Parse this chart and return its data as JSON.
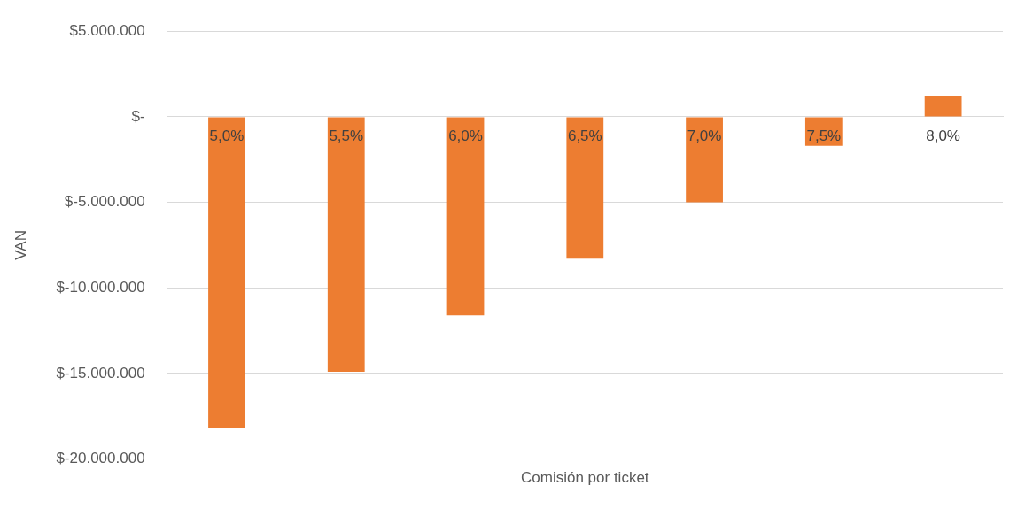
{
  "chart_data": {
    "type": "bar",
    "xlabel": "Comisión por ticket",
    "ylabel": "VAN",
    "categories": [
      "5,0%",
      "5,5%",
      "6,0%",
      "6,5%",
      "7,0%",
      "7,5%",
      "8,0%"
    ],
    "values": [
      -18200000,
      -14900000,
      -11600000,
      -8300000,
      -5000000,
      -1700000,
      1200000
    ],
    "color": "#ed7d31",
    "ylim": [
      -20000000,
      5000000
    ],
    "yticks": [
      {
        "value": -20000000,
        "label": "$-20.000.000"
      },
      {
        "value": -15000000,
        "label": "$-15.000.000"
      },
      {
        "value": -10000000,
        "label": "$-10.000.000"
      },
      {
        "value": -5000000,
        "label": "$-5.000.000"
      },
      {
        "value": 0,
        "label": "$-"
      },
      {
        "value": 5000000,
        "label": "$5.000.000"
      }
    ],
    "grid": "y",
    "legend": false
  }
}
